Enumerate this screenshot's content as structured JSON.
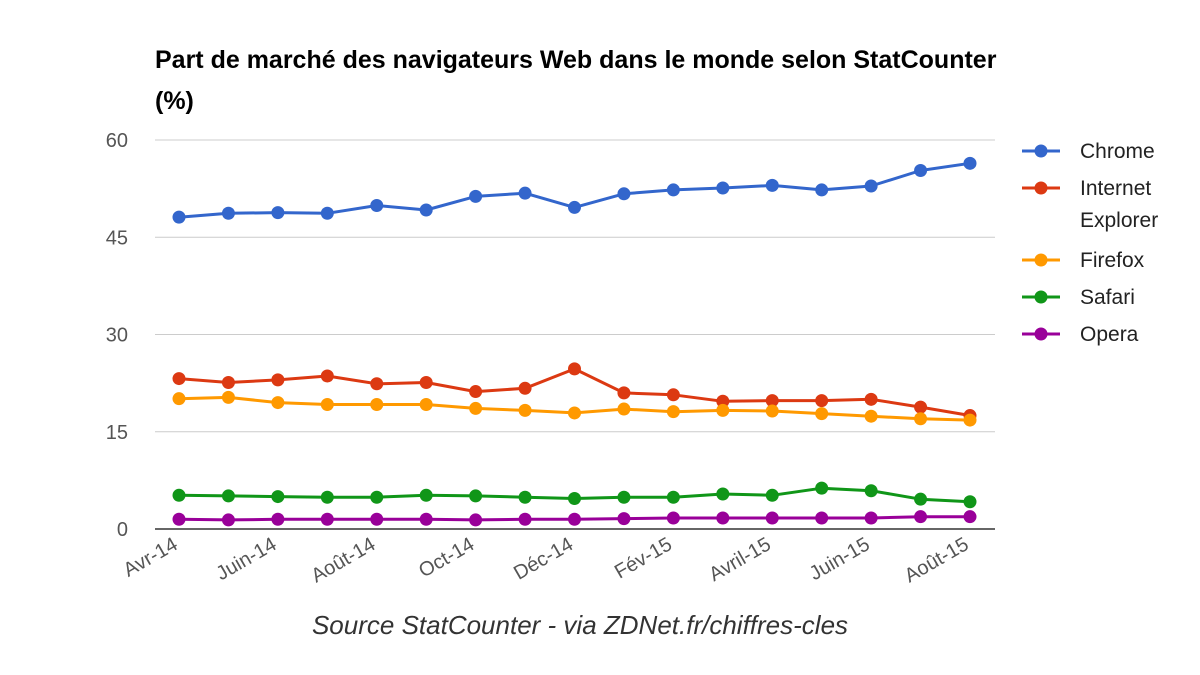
{
  "chart_data": {
    "type": "line",
    "title": "Part de marché des navigateurs Web dans le monde selon StatCounter (%)",
    "caption": "Source StatCounter - via ZDNet.fr/chiffres-cles",
    "xlabel": "",
    "ylabel": "",
    "ylim": [
      0,
      60
    ],
    "yticks": [
      0,
      15,
      30,
      45,
      60
    ],
    "grid": true,
    "legend_position": "right",
    "x_tick_labels": [
      "Avr-14",
      "Juin-14",
      "Août-14",
      "Oct-14",
      "Déc-14",
      "Fév-15",
      "Avril-15",
      "Juin-15",
      "Août-15"
    ],
    "x_tick_indices": [
      0,
      2,
      4,
      6,
      8,
      10,
      12,
      14,
      16
    ],
    "num_points": 17,
    "series": [
      {
        "name": "Chrome",
        "legend_lines": [
          "Chrome"
        ],
        "color": "#3366cc",
        "values": [
          48.1,
          48.7,
          48.8,
          48.7,
          49.9,
          49.2,
          51.3,
          51.8,
          49.6,
          51.7,
          52.3,
          52.6,
          53.0,
          52.3,
          52.9,
          55.3,
          56.4
        ]
      },
      {
        "name": "Internet Explorer",
        "legend_lines": [
          "Internet",
          "Explorer"
        ],
        "color": "#dc3912",
        "values": [
          23.2,
          22.6,
          23.0,
          23.6,
          22.4,
          22.6,
          21.2,
          21.7,
          24.7,
          21.0,
          20.7,
          19.7,
          19.8,
          19.8,
          20.0,
          18.8,
          17.5
        ]
      },
      {
        "name": "Firefox",
        "legend_lines": [
          "Firefox"
        ],
        "color": "#ff9900",
        "values": [
          20.1,
          20.3,
          19.5,
          19.2,
          19.2,
          19.2,
          18.6,
          18.3,
          17.9,
          18.5,
          18.1,
          18.3,
          18.2,
          17.8,
          17.4,
          17.0,
          16.8
        ]
      },
      {
        "name": "Safari",
        "legend_lines": [
          "Safari"
        ],
        "color": "#109618",
        "values": [
          5.2,
          5.1,
          5.0,
          4.9,
          4.9,
          5.2,
          5.1,
          4.9,
          4.7,
          4.9,
          4.9,
          5.4,
          5.2,
          6.3,
          5.9,
          4.6,
          4.2
        ]
      },
      {
        "name": "Opera",
        "legend_lines": [
          "Opera"
        ],
        "color": "#990099",
        "values": [
          1.5,
          1.4,
          1.5,
          1.5,
          1.5,
          1.5,
          1.4,
          1.5,
          1.5,
          1.6,
          1.7,
          1.7,
          1.7,
          1.7,
          1.7,
          1.9,
          1.9
        ]
      }
    ]
  }
}
